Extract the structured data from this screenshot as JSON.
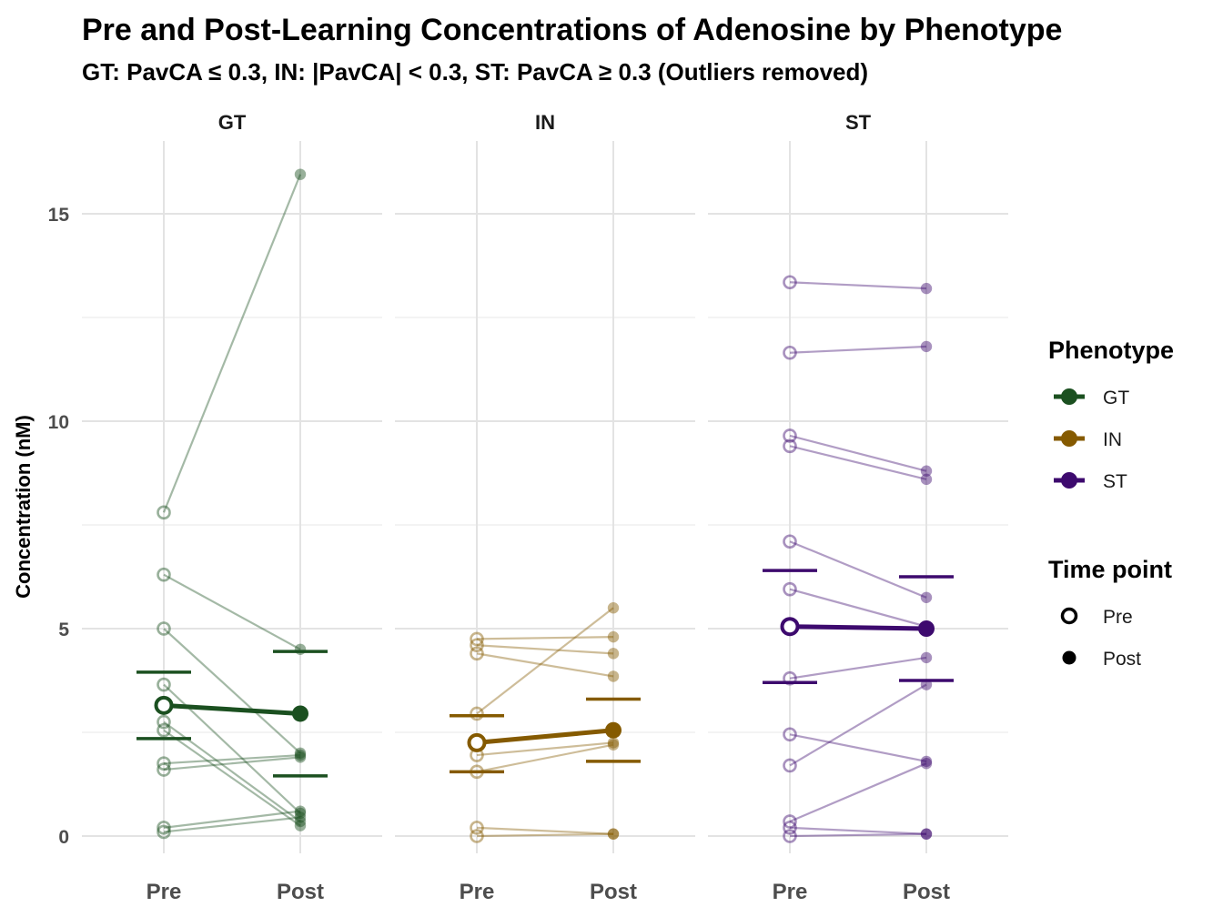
{
  "chart_data": {
    "type": "line",
    "title": "Pre and Post-Learning Concentrations of Adenosine by Phenotype",
    "subtitle": "GT: PavCA ≤ 0.3, IN: |PavCA| < 0.3, ST: PavCA ≥ 0.3 (Outliers removed)",
    "ylabel": "Concentration (nM)",
    "xlabel": "",
    "ylim": [
      -0.4,
      16.7
    ],
    "y_ticks": [
      "0",
      "5",
      "10",
      "15"
    ],
    "x_categories": [
      "Pre",
      "Post"
    ],
    "grid": true,
    "legend_position": "right",
    "legend": {
      "phenotype_title": "Phenotype",
      "phenotype_items": [
        {
          "label": "GT",
          "color": "#1b5020"
        },
        {
          "label": "IN",
          "color": "#855a00"
        },
        {
          "label": "ST",
          "color": "#3d0a6e"
        }
      ],
      "time_title": "Time point",
      "time_items": [
        {
          "label": "Pre",
          "shape": "open-circle"
        },
        {
          "label": "Post",
          "shape": "filled-circle"
        }
      ]
    },
    "panels": [
      {
        "label": "GT",
        "color": "#1b5020",
        "subjects": [
          {
            "pre": 7.8,
            "post": 15.95
          },
          {
            "pre": 6.3,
            "post": 4.5
          },
          {
            "pre": 5.0,
            "post": 2.0
          },
          {
            "pre": 3.65,
            "post": 0.55
          },
          {
            "pre": 2.75,
            "post": 0.35
          },
          {
            "pre": 2.55,
            "post": 0.25
          },
          {
            "pre": 1.75,
            "post": 1.95
          },
          {
            "pre": 1.6,
            "post": 1.9
          },
          {
            "pre": 0.2,
            "post": 0.6
          },
          {
            "pre": 0.1,
            "post": 0.45
          }
        ],
        "mean": {
          "pre": 3.15,
          "post": 2.95
        },
        "ci": {
          "pre": [
            2.35,
            3.95
          ],
          "post": [
            1.45,
            4.45
          ]
        }
      },
      {
        "label": "IN",
        "color": "#855a00",
        "subjects": [
          {
            "pre": 4.75,
            "post": 4.8
          },
          {
            "pre": 4.6,
            "post": 4.4
          },
          {
            "pre": 4.4,
            "post": 3.85
          },
          {
            "pre": 2.95,
            "post": 5.5
          },
          {
            "pre": 1.95,
            "post": 2.25
          },
          {
            "pre": 1.55,
            "post": 2.2
          },
          {
            "pre": 0.2,
            "post": 0.05
          },
          {
            "pre": 0.0,
            "post": 0.05
          }
        ],
        "mean": {
          "pre": 2.25,
          "post": 2.55
        },
        "ci": {
          "pre": [
            1.55,
            2.9
          ],
          "post": [
            1.8,
            3.3
          ]
        }
      },
      {
        "label": "ST",
        "color": "#3d0a6e",
        "subjects": [
          {
            "pre": 13.35,
            "post": 13.2
          },
          {
            "pre": 11.65,
            "post": 11.8
          },
          {
            "pre": 9.65,
            "post": 8.8
          },
          {
            "pre": 9.4,
            "post": 8.6
          },
          {
            "pre": 7.1,
            "post": 5.75
          },
          {
            "pre": 5.95,
            "post": 5.05
          },
          {
            "pre": 3.8,
            "post": 4.3
          },
          {
            "pre": 2.45,
            "post": 1.8
          },
          {
            "pre": 1.7,
            "post": 3.65
          },
          {
            "pre": 0.35,
            "post": 1.75
          },
          {
            "pre": 0.2,
            "post": 0.05
          },
          {
            "pre": 0.0,
            "post": 0.05
          }
        ],
        "mean": {
          "pre": 5.05,
          "post": 5.0
        },
        "ci": {
          "pre": [
            3.7,
            6.4
          ],
          "post": [
            3.75,
            6.25
          ]
        }
      }
    ]
  }
}
